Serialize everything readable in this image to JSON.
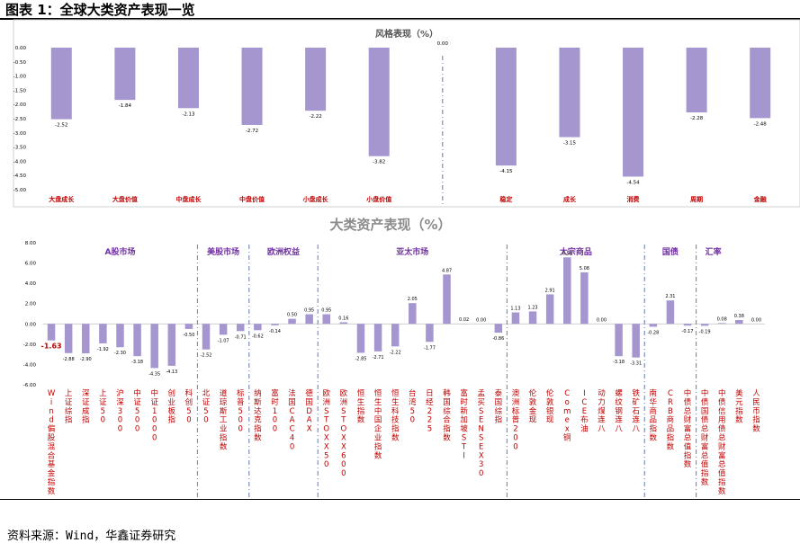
{
  "header": {
    "figure_title": "图表 1：全球大类资产表现一览"
  },
  "source": "资料来源：Wind，华鑫证券研究",
  "chart_data": [
    {
      "type": "bar",
      "title": "风格表现（%）",
      "ylim": [
        -5.0,
        0.0
      ],
      "ytick_step": 0.5,
      "grid": false,
      "bar_color": "#a596d0",
      "label_color": "#c00000",
      "divider_after_index": 5,
      "categories": [
        "大盘成长",
        "大盘价值",
        "中盘成长",
        "中盘价值",
        "小盘成长",
        "小盘价值",
        "",
        "稳定",
        "成长",
        "消费",
        "周期",
        "金融"
      ],
      "values": [
        -2.52,
        -1.84,
        -2.13,
        -2.72,
        -2.22,
        -3.82,
        0.0,
        -4.15,
        -3.15,
        -4.54,
        -2.28,
        -2.48
      ]
    },
    {
      "type": "bar",
      "title": "大类资产表现（%）",
      "ylim": [
        -6.0,
        8.0
      ],
      "ytick_step": 2.0,
      "grid": false,
      "bar_color": "#a596d0",
      "label_color": "#c00000",
      "group_label_color": "#7030a0",
      "highlight": {
        "index": 0,
        "color": "#c00000"
      },
      "groups": [
        {
          "name": "A股市场",
          "start": 0,
          "end": 8
        },
        {
          "name": "美股市场",
          "start": 9,
          "end": 11
        },
        {
          "name": "欧洲权益",
          "start": 12,
          "end": 15
        },
        {
          "name": "亚太市场",
          "start": 16,
          "end": 26
        },
        {
          "name": "大宗商品",
          "start": 27,
          "end": 34
        },
        {
          "name": "国债",
          "start": 35,
          "end": 37
        },
        {
          "name": "汇率",
          "start": 38,
          "end": 39
        }
      ],
      "categories": [
        "Wind偏股混合基金指数",
        "上证综指",
        "深证成指",
        "上证50",
        "沪深300",
        "中证500",
        "中证1000",
        "创业板指",
        "科创50",
        "北证50",
        "道琼斯工业指数",
        "标普500",
        "纳斯达克指数",
        "富时100",
        "法国CAC40",
        "德国DAX",
        "欧洲STOXX50",
        "欧洲STOXX600",
        "恒生指数",
        "恒生中国企业指数",
        "恒生科技指数",
        "台湾50",
        "日经225",
        "韩国综合指数",
        "富时新加坡STI",
        "孟买SENSEX30",
        "泰国综指",
        "澳洲标普200",
        "伦敦金现",
        "伦敦银现",
        "Comex铜",
        "ICE布油",
        "动力煤连八",
        "螺纹钢连八",
        "铁矿石连八",
        "南华商品指数",
        "CRB商品指数",
        "中债总财富总值指数",
        "中债国债总财富总值指数",
        "中债信用债总财富总值指数",
        "美元指数",
        "人民币指数"
      ],
      "values": [
        -1.63,
        -2.88,
        -2.9,
        -1.92,
        -2.3,
        -3.18,
        -4.35,
        -4.13,
        -0.5,
        -2.52,
        -1.07,
        -0.71,
        -0.62,
        -0.14,
        0.5,
        0.95,
        0.95,
        0.16,
        -2.85,
        -2.71,
        -2.22,
        2.05,
        -1.77,
        4.87,
        0.02,
        0.0,
        -0.86,
        1.13,
        1.23,
        2.91,
        6.56,
        5.08,
        0.0,
        -3.18,
        -3.31,
        -0.28,
        2.31,
        -0.17,
        -0.19,
        0.08,
        0.38,
        0.0
      ]
    }
  ]
}
